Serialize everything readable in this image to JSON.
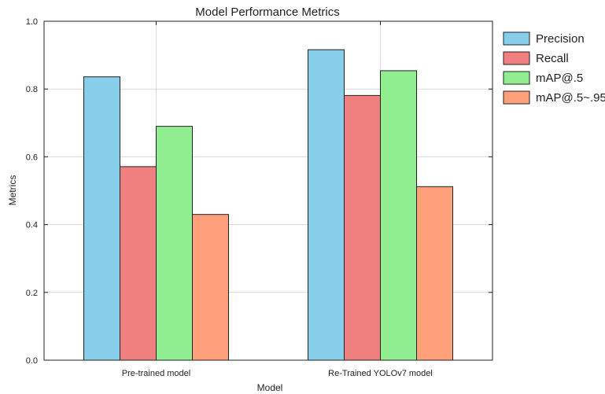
{
  "chart_data": {
    "type": "bar",
    "title": "Model Performance Metrics",
    "xlabel": "Model",
    "ylabel": "Metrics",
    "categories": [
      "Pre-trained model",
      "Re-Trained YOLOv7 model"
    ],
    "series": [
      {
        "name": "Precision",
        "values": [
          0.836,
          0.916
        ],
        "color": "#87CEEB"
      },
      {
        "name": "Recall",
        "values": [
          0.571,
          0.781
        ],
        "color": "#F08080"
      },
      {
        "name": "mAP@.5",
        "values": [
          0.69,
          0.854
        ],
        "color": "#90EE90"
      },
      {
        "name": "mAP@.5~.95",
        "values": [
          0.43,
          0.512
        ],
        "color": "#FFA07A"
      }
    ],
    "ylim": [
      0.0,
      1.0
    ],
    "yticks": [
      "0.0",
      "0.2",
      "0.4",
      "0.6",
      "0.8",
      "1.0"
    ],
    "grid": true,
    "legend_position": "outside-right"
  }
}
